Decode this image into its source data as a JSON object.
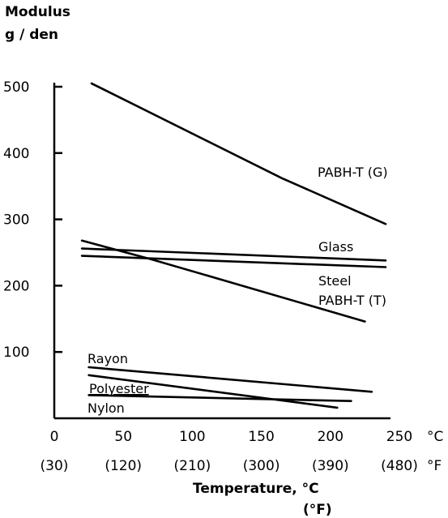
{
  "chart_data": {
    "type": "line",
    "ylabel": [
      "Modulus",
      "g / den"
    ],
    "xlabel": [
      "Temperature, °C",
      "(°F)"
    ],
    "xlim": [
      0,
      250
    ],
    "ylim": [
      0,
      500
    ],
    "x_ticks": [
      0,
      50,
      100,
      150,
      200,
      250
    ],
    "x_tick_labels": [
      "0",
      "50",
      "100",
      "150",
      "200",
      "250"
    ],
    "x_unit": "°C",
    "x2_tick_labels": [
      "(30)",
      "(120)",
      "(210)",
      "(300)",
      "(390)",
      "(480)"
    ],
    "x2_unit": "°F",
    "y_ticks": [
      100,
      200,
      300,
      400,
      500
    ],
    "y_tick_labels": [
      "100",
      "200",
      "300",
      "400",
      "500"
    ],
    "series": [
      {
        "name": "PABH-T (G)",
        "x": [
          27,
          165,
          240
        ],
        "y": [
          505,
          362,
          293
        ]
      },
      {
        "name": "Glass",
        "x": [
          20,
          240
        ],
        "y": [
          256,
          238
        ]
      },
      {
        "name": "Steel",
        "x": [
          20,
          240
        ],
        "y": [
          245,
          228
        ]
      },
      {
        "name": "PABH-T (T)",
        "x": [
          20,
          70,
          225
        ],
        "y": [
          268,
          240,
          146
        ]
      },
      {
        "name": "Rayon",
        "x": [
          25,
          230
        ],
        "y": [
          77,
          40
        ]
      },
      {
        "name": "Polyester",
        "x": [
          25,
          205
        ],
        "y": [
          65,
          16
        ]
      },
      {
        "name": "Nylon",
        "x": [
          25,
          215
        ],
        "y": [
          35,
          26
        ]
      }
    ]
  }
}
